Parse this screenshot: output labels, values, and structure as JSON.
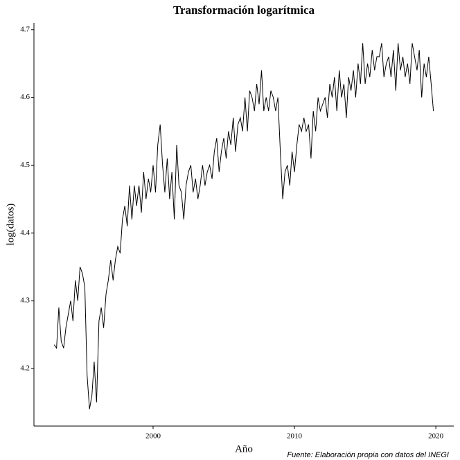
{
  "chart_data": {
    "type": "line",
    "title": "Transformación logarítmica",
    "x_label": "Año",
    "y_label": "log(datos)",
    "caption": "Fuente: Elaboración propia con datos del INEGI",
    "xlim": [
      1991.57,
      2021.27
    ],
    "xticks": [
      2000,
      2010,
      2020
    ],
    "ylim": [
      4.115,
      4.71
    ],
    "yticks": [
      4.2,
      4.3,
      4.4,
      4.5,
      4.6,
      4.7
    ],
    "x": [
      1993,
      1993.17,
      1993.33,
      1993.5,
      1993.67,
      1993.83,
      1994,
      1994.17,
      1994.33,
      1994.5,
      1994.67,
      1994.83,
      1995,
      1995.17,
      1995.33,
      1995.5,
      1995.67,
      1995.83,
      1996,
      1996.17,
      1996.33,
      1996.5,
      1996.67,
      1996.83,
      1997,
      1997.17,
      1997.33,
      1997.5,
      1997.67,
      1997.83,
      1998,
      1998.17,
      1998.33,
      1998.5,
      1998.67,
      1998.83,
      1999,
      1999.17,
      1999.33,
      1999.5,
      1999.67,
      1999.83,
      2000,
      2000.17,
      2000.33,
      2000.5,
      2000.67,
      2000.83,
      2001,
      2001.17,
      2001.33,
      2001.5,
      2001.67,
      2001.83,
      2002,
      2002.17,
      2002.33,
      2002.5,
      2002.67,
      2002.83,
      2003,
      2003.17,
      2003.33,
      2003.5,
      2003.67,
      2003.83,
      2004,
      2004.17,
      2004.33,
      2004.5,
      2004.67,
      2004.83,
      2005,
      2005.17,
      2005.33,
      2005.5,
      2005.67,
      2005.83,
      2006,
      2006.17,
      2006.33,
      2006.5,
      2006.67,
      2006.83,
      2007,
      2007.17,
      2007.33,
      2007.5,
      2007.67,
      2007.83,
      2008,
      2008.17,
      2008.33,
      2008.5,
      2008.67,
      2008.83,
      2009,
      2009.17,
      2009.33,
      2009.5,
      2009.67,
      2009.83,
      2010,
      2010.17,
      2010.33,
      2010.5,
      2010.67,
      2010.83,
      2011,
      2011.17,
      2011.33,
      2011.5,
      2011.67,
      2011.83,
      2012,
      2012.17,
      2012.33,
      2012.5,
      2012.67,
      2012.83,
      2013,
      2013.17,
      2013.33,
      2013.5,
      2013.67,
      2013.83,
      2014,
      2014.17,
      2014.33,
      2014.5,
      2014.67,
      2014.83,
      2015,
      2015.17,
      2015.33,
      2015.5,
      2015.67,
      2015.83,
      2016,
      2016.17,
      2016.33,
      2016.5,
      2016.67,
      2016.83,
      2017,
      2017.17,
      2017.33,
      2017.5,
      2017.67,
      2017.83,
      2018,
      2018.17,
      2018.33,
      2018.5,
      2018.67,
      2018.83,
      2019,
      2019.17,
      2019.33,
      2019.5,
      2019.67,
      2019.83
    ],
    "series": [
      {
        "name": "log(datos)",
        "color": "#000000",
        "values": [
          4.235,
          4.23,
          4.29,
          4.24,
          4.23,
          4.26,
          4.28,
          4.3,
          4.27,
          4.33,
          4.3,
          4.35,
          4.34,
          4.32,
          4.19,
          4.14,
          4.16,
          4.21,
          4.15,
          4.27,
          4.29,
          4.26,
          4.31,
          4.33,
          4.36,
          4.33,
          4.36,
          4.38,
          4.37,
          4.42,
          4.44,
          4.41,
          4.47,
          4.42,
          4.47,
          4.44,
          4.47,
          4.43,
          4.49,
          4.45,
          4.48,
          4.46,
          4.5,
          4.46,
          4.53,
          4.56,
          4.5,
          4.46,
          4.51,
          4.45,
          4.49,
          4.42,
          4.53,
          4.47,
          4.46,
          4.42,
          4.47,
          4.49,
          4.5,
          4.46,
          4.48,
          4.45,
          4.47,
          4.5,
          4.47,
          4.49,
          4.5,
          4.48,
          4.52,
          4.54,
          4.49,
          4.52,
          4.54,
          4.51,
          4.55,
          4.53,
          4.57,
          4.52,
          4.56,
          4.57,
          4.55,
          4.6,
          4.55,
          4.61,
          4.6,
          4.58,
          4.62,
          4.59,
          4.64,
          4.58,
          4.6,
          4.58,
          4.61,
          4.6,
          4.58,
          4.6,
          4.52,
          4.45,
          4.49,
          4.5,
          4.47,
          4.52,
          4.49,
          4.53,
          4.56,
          4.55,
          4.57,
          4.55,
          4.56,
          4.51,
          4.58,
          4.55,
          4.6,
          4.58,
          4.59,
          4.6,
          4.57,
          4.62,
          4.6,
          4.63,
          4.58,
          4.64,
          4.6,
          4.62,
          4.57,
          4.63,
          4.61,
          4.64,
          4.6,
          4.65,
          4.62,
          4.68,
          4.62,
          4.65,
          4.63,
          4.67,
          4.64,
          4.66,
          4.66,
          4.68,
          4.63,
          4.65,
          4.66,
          4.63,
          4.67,
          4.61,
          4.68,
          4.64,
          4.66,
          4.63,
          4.65,
          4.62,
          4.68,
          4.66,
          4.64,
          4.67,
          4.6,
          4.65,
          4.63,
          4.66,
          4.62,
          4.58
        ]
      }
    ]
  }
}
